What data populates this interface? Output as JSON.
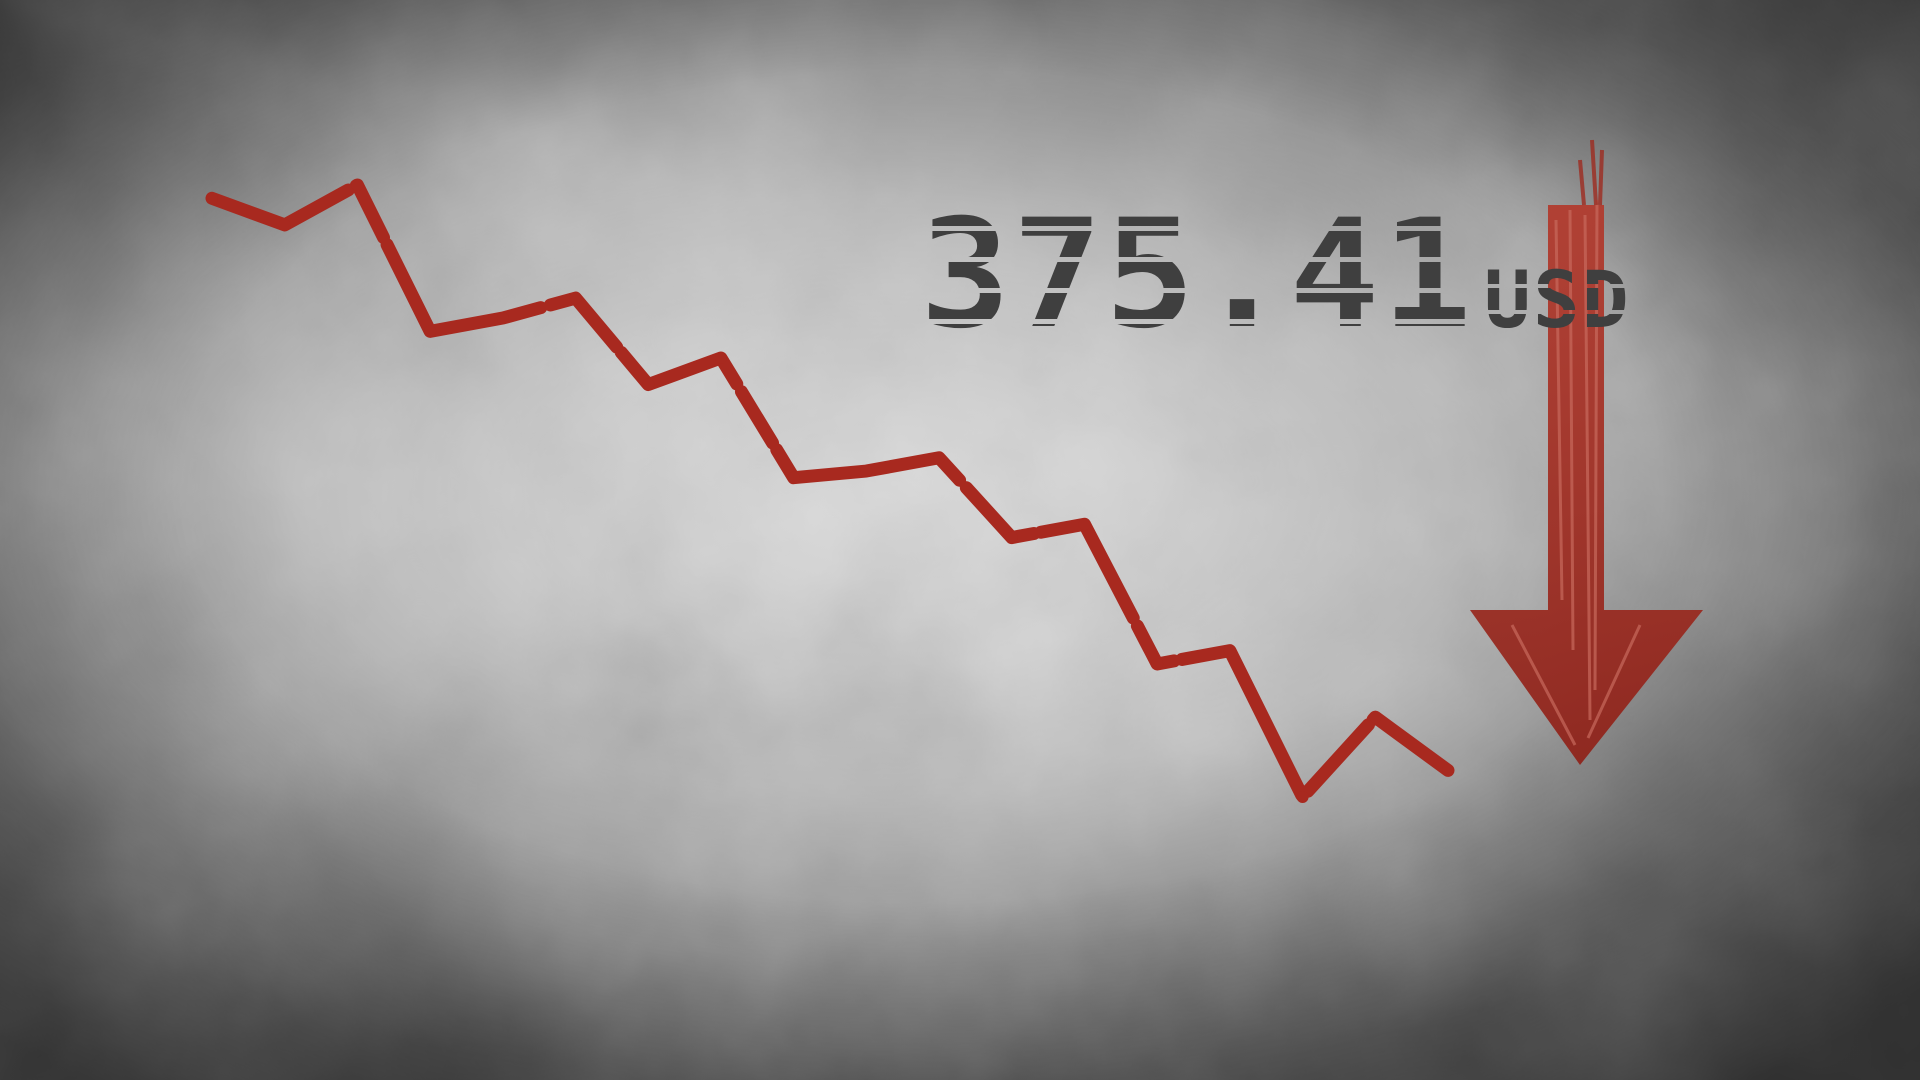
{
  "price": {
    "value": "375.41",
    "unit": "USD"
  },
  "colors": {
    "line": "#a8291f",
    "arrow": "#9e2a1f",
    "text": "#3f3f3f"
  },
  "chart_data": {
    "type": "line",
    "title": "",
    "xlabel": "",
    "ylabel": "",
    "grid": false,
    "trend": "down",
    "series": [
      {
        "values": [
          100,
          96,
          102,
          80,
          82,
          85,
          72,
          76,
          58,
          59,
          61,
          49,
          51,
          30,
          32,
          10,
          22,
          14
        ]
      }
    ]
  }
}
